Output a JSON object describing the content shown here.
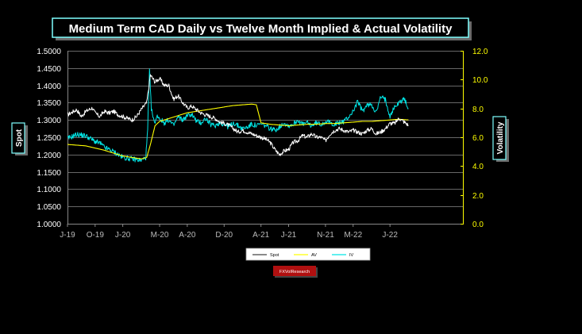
{
  "chart_data": {
    "type": "line",
    "title": "Medium Term CAD Daily vs Twelve Month Implied & Actual Volatility",
    "y_left": {
      "label": "Spot",
      "range": [
        1.0,
        1.5
      ],
      "ticks": [
        "1.0000",
        "1.0500",
        "1.1000",
        "1.1500",
        "1.2000",
        "1.2500",
        "1.3000",
        "1.3500",
        "1.4000",
        "1.4500",
        "1.5000"
      ]
    },
    "y_right": {
      "label": "Volatility",
      "range": [
        0,
        12
      ],
      "ticks": [
        "0.0",
        "2.0",
        "4.0",
        "6.0",
        "8.0",
        "10.0",
        "12.0"
      ]
    },
    "x_axis": {
      "range": [
        0,
        43
      ],
      "ticks": [
        {
          "label": "J-19",
          "month": 0
        },
        {
          "label": "O-19",
          "month": 3
        },
        {
          "label": "J-20",
          "month": 6
        },
        {
          "label": "M-20",
          "month": 10
        },
        {
          "label": "A-20",
          "month": 13
        },
        {
          "label": "D-20",
          "month": 17
        },
        {
          "label": "A-21",
          "month": 21
        },
        {
          "label": "J-21",
          "month": 24
        },
        {
          "label": "N-21",
          "month": 28
        },
        {
          "label": "M-22",
          "month": 31
        },
        {
          "label": "J-22",
          "month": 35
        }
      ]
    },
    "grid": true,
    "legend_position": "bottom-center",
    "series": [
      {
        "name": "Spot",
        "axis": "left",
        "color": "#ffffff",
        "points": [
          [
            0,
            1.315
          ],
          [
            1,
            1.33
          ],
          [
            1.5,
            1.31
          ],
          [
            2,
            1.325
          ],
          [
            2.7,
            1.335
          ],
          [
            3,
            1.32
          ],
          [
            3.5,
            1.31
          ],
          [
            4,
            1.325
          ],
          [
            4.5,
            1.32
          ],
          [
            5,
            1.325
          ],
          [
            5.5,
            1.315
          ],
          [
            6,
            1.31
          ],
          [
            6.5,
            1.305
          ],
          [
            7,
            1.3
          ],
          [
            7.5,
            1.31
          ],
          [
            8,
            1.33
          ],
          [
            8.6,
            1.35
          ],
          [
            9,
            1.43
          ],
          [
            9.5,
            1.41
          ],
          [
            10,
            1.42
          ],
          [
            10.5,
            1.4
          ],
          [
            11,
            1.4
          ],
          [
            11.5,
            1.36
          ],
          [
            12,
            1.37
          ],
          [
            12.5,
            1.35
          ],
          [
            13,
            1.335
          ],
          [
            13.5,
            1.34
          ],
          [
            14,
            1.33
          ],
          [
            14.5,
            1.32
          ],
          [
            15,
            1.315
          ],
          [
            15.5,
            1.31
          ],
          [
            16,
            1.305
          ],
          [
            16.5,
            1.295
          ],
          [
            17,
            1.29
          ],
          [
            17.5,
            1.285
          ],
          [
            18,
            1.275
          ],
          [
            18.5,
            1.265
          ],
          [
            19,
            1.27
          ],
          [
            19.5,
            1.265
          ],
          [
            20,
            1.26
          ],
          [
            20.5,
            1.255
          ],
          [
            21,
            1.25
          ],
          [
            21.5,
            1.245
          ],
          [
            22,
            1.235
          ],
          [
            22.5,
            1.215
          ],
          [
            23,
            1.2
          ],
          [
            23.5,
            1.21
          ],
          [
            24,
            1.215
          ],
          [
            24.5,
            1.235
          ],
          [
            25,
            1.24
          ],
          [
            25.5,
            1.255
          ],
          [
            26,
            1.25
          ],
          [
            26.5,
            1.26
          ],
          [
            27,
            1.25
          ],
          [
            27.5,
            1.25
          ],
          [
            28,
            1.24
          ],
          [
            28.5,
            1.26
          ],
          [
            29,
            1.27
          ],
          [
            29.5,
            1.275
          ],
          [
            30,
            1.27
          ],
          [
            30.5,
            1.265
          ],
          [
            31,
            1.27
          ],
          [
            31.5,
            1.265
          ],
          [
            32,
            1.26
          ],
          [
            32.5,
            1.27
          ],
          [
            33,
            1.275
          ],
          [
            33.5,
            1.26
          ],
          [
            34,
            1.265
          ],
          [
            34.5,
            1.275
          ],
          [
            35,
            1.29
          ],
          [
            35.5,
            1.29
          ],
          [
            36,
            1.305
          ],
          [
            36.5,
            1.295
          ],
          [
            37,
            1.285
          ]
        ]
      },
      {
        "name": "AV",
        "axis": "right",
        "color": "#ffff00",
        "points": [
          [
            0,
            5.5
          ],
          [
            2,
            5.4
          ],
          [
            4,
            5.1
          ],
          [
            5,
            4.9
          ],
          [
            6,
            4.7
          ],
          [
            7,
            4.6
          ],
          [
            8,
            4.5
          ],
          [
            8.6,
            4.6
          ],
          [
            9,
            5.5
          ],
          [
            9.5,
            6.8
          ],
          [
            10,
            7.1
          ],
          [
            11,
            7.3
          ],
          [
            12,
            7.5
          ],
          [
            13,
            7.7
          ],
          [
            14,
            7.8
          ],
          [
            15,
            7.9
          ],
          [
            16,
            8.0
          ],
          [
            17,
            8.1
          ],
          [
            18,
            8.2
          ],
          [
            19,
            8.25
          ],
          [
            20,
            8.3
          ],
          [
            20.5,
            8.25
          ],
          [
            21,
            7.0
          ],
          [
            22,
            6.9
          ],
          [
            23,
            6.85
          ],
          [
            24,
            6.8
          ],
          [
            25,
            6.85
          ],
          [
            26,
            6.9
          ],
          [
            27,
            6.9
          ],
          [
            28,
            6.95
          ],
          [
            29,
            6.95
          ],
          [
            30,
            7.0
          ],
          [
            31,
            7.05
          ],
          [
            32,
            7.1
          ],
          [
            33,
            7.1
          ],
          [
            34,
            7.15
          ],
          [
            35,
            7.2
          ],
          [
            36,
            7.25
          ],
          [
            37,
            7.2
          ]
        ]
      },
      {
        "name": "IV",
        "axis": "right",
        "color": "#00e5e5",
        "points": [
          [
            0,
            5.9
          ],
          [
            1,
            6.2
          ],
          [
            2,
            6.1
          ],
          [
            3,
            5.7
          ],
          [
            3.5,
            5.6
          ],
          [
            4,
            5.3
          ],
          [
            5,
            5.0
          ],
          [
            6,
            4.6
          ],
          [
            7,
            4.5
          ],
          [
            8,
            4.4
          ],
          [
            8.5,
            4.6
          ],
          [
            8.7,
            6.5
          ],
          [
            8.9,
            10.6
          ],
          [
            9.1,
            8.0
          ],
          [
            9.4,
            7.0
          ],
          [
            9.8,
            7.5
          ],
          [
            10,
            7.3
          ],
          [
            10.5,
            7.0
          ],
          [
            11,
            7.2
          ],
          [
            11.5,
            6.8
          ],
          [
            12,
            7.4
          ],
          [
            12.5,
            7.2
          ],
          [
            13,
            7.5
          ],
          [
            13.5,
            7.6
          ],
          [
            14,
            7.1
          ],
          [
            14.5,
            7.0
          ],
          [
            15,
            7.3
          ],
          [
            15.5,
            6.9
          ],
          [
            16,
            6.8
          ],
          [
            16.5,
            7.0
          ],
          [
            17,
            6.9
          ],
          [
            17.5,
            6.7
          ],
          [
            18,
            7.0
          ],
          [
            18.5,
            6.8
          ],
          [
            19,
            6.6
          ],
          [
            19.5,
            6.7
          ],
          [
            20,
            6.9
          ],
          [
            20.5,
            6.8
          ],
          [
            21,
            6.9
          ],
          [
            21.5,
            6.8
          ],
          [
            22,
            6.6
          ],
          [
            22.5,
            6.5
          ],
          [
            23,
            6.7
          ],
          [
            23.5,
            7.0
          ],
          [
            24,
            6.8
          ],
          [
            24.5,
            6.9
          ],
          [
            25,
            7.2
          ],
          [
            25.5,
            6.9
          ],
          [
            26,
            7.0
          ],
          [
            26.5,
            6.8
          ],
          [
            27,
            7.0
          ],
          [
            27.5,
            6.9
          ],
          [
            28,
            7.1
          ],
          [
            28.5,
            7.0
          ],
          [
            29,
            6.9
          ],
          [
            29.5,
            7.0
          ],
          [
            30,
            7.1
          ],
          [
            30.5,
            7.4
          ],
          [
            31,
            7.8
          ],
          [
            31.5,
            8.5
          ],
          [
            32,
            7.8
          ],
          [
            32.5,
            8.2
          ],
          [
            33,
            8.3
          ],
          [
            33.5,
            7.7
          ],
          [
            34,
            8.8
          ],
          [
            34.5,
            8.6
          ],
          [
            35,
            7.5
          ],
          [
            35.5,
            8.1
          ],
          [
            36,
            8.4
          ],
          [
            36.5,
            8.7
          ],
          [
            37,
            8.0
          ]
        ]
      }
    ],
    "watermark": "FXVolResearch"
  }
}
